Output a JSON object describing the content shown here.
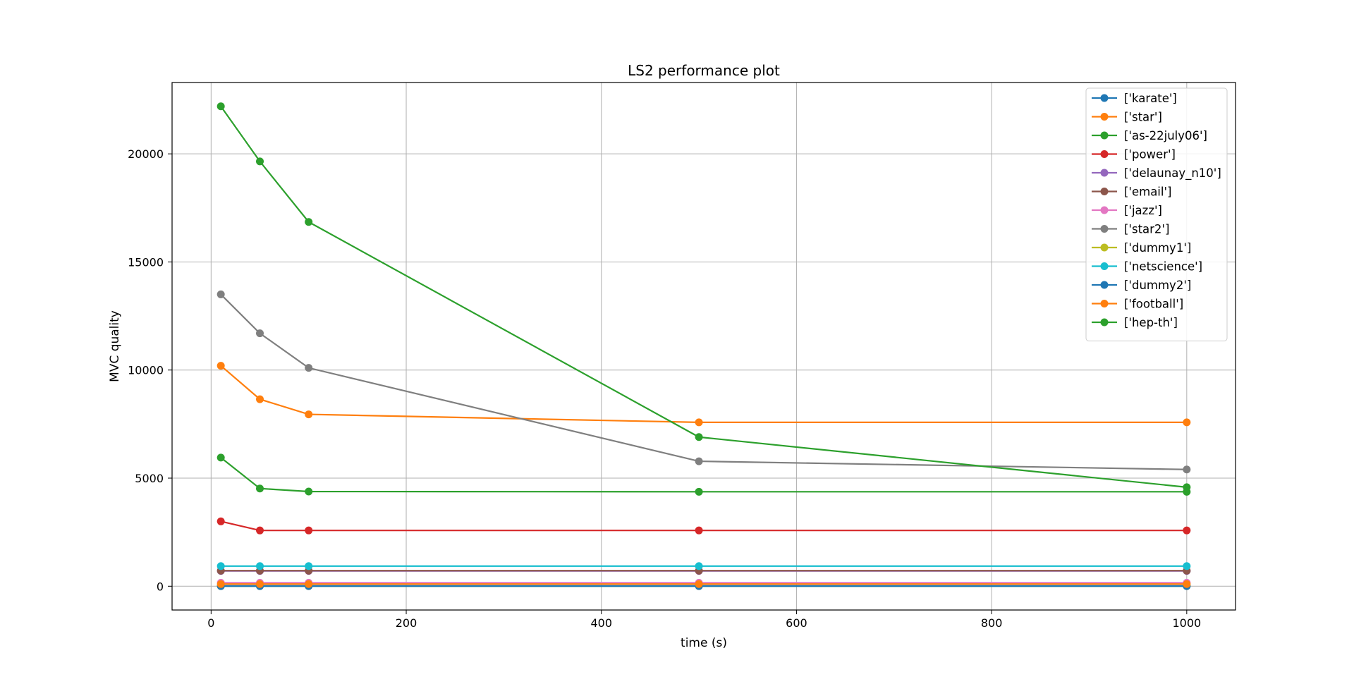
{
  "chart_data": {
    "type": "line",
    "title": "LS2 performance plot",
    "xlabel": "time (s)",
    "ylabel": "MVC quality",
    "xlim": [
      -40,
      1050
    ],
    "ylim": [
      -1100,
      23300
    ],
    "x_ticks": [
      0,
      200,
      400,
      600,
      800,
      1000
    ],
    "y_ticks": [
      0,
      5000,
      10000,
      15000,
      20000
    ],
    "grid": true,
    "legend_position": "top-right",
    "x": [
      10,
      50,
      100,
      500,
      1000
    ],
    "series": [
      {
        "name": "['karate']",
        "color": "#1f77b4",
        "values": [
          14,
          14,
          14,
          14,
          14
        ]
      },
      {
        "name": "['star']",
        "color": "#ff7f0e",
        "values": [
          10200,
          8650,
          7950,
          7580,
          7580
        ]
      },
      {
        "name": "['as-22july06']",
        "color": "#2ca02c",
        "values": [
          5950,
          4520,
          4380,
          4370,
          4370
        ]
      },
      {
        "name": "['power']",
        "color": "#d62728",
        "values": [
          3000,
          2580,
          2580,
          2580,
          2580
        ]
      },
      {
        "name": "['delaunay_n10']",
        "color": "#9467bd",
        "values": [
          705,
          705,
          705,
          705,
          705
        ]
      },
      {
        "name": "['email']",
        "color": "#8c564b",
        "values": [
          720,
          720,
          720,
          720,
          720
        ]
      },
      {
        "name": "['jazz']",
        "color": "#e377c2",
        "values": [
          160,
          160,
          160,
          160,
          160
        ]
      },
      {
        "name": "['star2']",
        "color": "#7f7f7f",
        "values": [
          13500,
          11700,
          10100,
          5780,
          5400
        ]
      },
      {
        "name": "['dummy1']",
        "color": "#bcbd22",
        "values": [
          5,
          5,
          5,
          5,
          5
        ]
      },
      {
        "name": "['netscience']",
        "color": "#17becf",
        "values": [
          930,
          930,
          930,
          930,
          930
        ]
      },
      {
        "name": "['dummy2']",
        "color": "#1f77b4",
        "values": [
          5,
          5,
          5,
          5,
          5
        ]
      },
      {
        "name": "['football']",
        "color": "#ff7f0e",
        "values": [
          100,
          100,
          100,
          100,
          100
        ]
      },
      {
        "name": "['hep-th']",
        "color": "#2ca02c",
        "values": [
          22200,
          19650,
          16850,
          6900,
          4580
        ]
      }
    ]
  }
}
